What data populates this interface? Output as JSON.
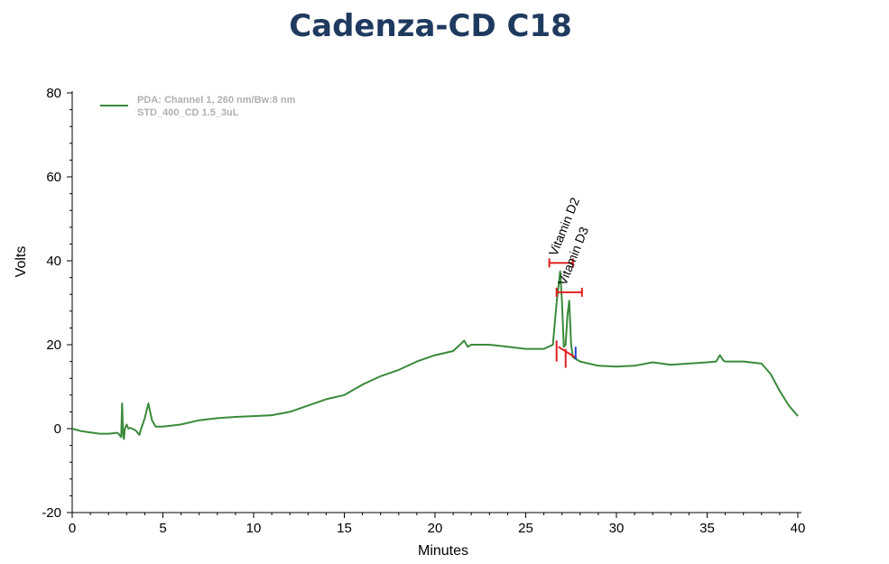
{
  "chart_data": {
    "type": "line",
    "title": "Cadenza-CD C18",
    "xlabel": "Minutes",
    "ylabel": "Volts",
    "xlim": [
      0,
      40
    ],
    "ylim": [
      -20,
      80
    ],
    "x_ticks": [
      0,
      5,
      10,
      15,
      20,
      25,
      30,
      35,
      40
    ],
    "y_ticks": [
      -20,
      0,
      20,
      40,
      60,
      80
    ],
    "legend": {
      "placement": "top-left",
      "entries": [
        "PDA: Channel 1, 260 nm/Bw:8 nm",
        "STD_400_CD 1.5_3uL"
      ]
    },
    "series": [
      {
        "name": "PDA: Channel 1, 260 nm/Bw:8 nm",
        "color": "#3a8a3a",
        "x": [
          0,
          0.5,
          1,
          1.5,
          2,
          2.5,
          2.7,
          2.75,
          2.8,
          2.85,
          2.9,
          3.0,
          3.1,
          3.2,
          3.5,
          3.7,
          3.8,
          4.0,
          4.2,
          4.4,
          4.6,
          5.0,
          6.0,
          7.0,
          8.0,
          9.0,
          10.0,
          11.0,
          12.0,
          13.0,
          14.0,
          15.0,
          16.0,
          17.0,
          18.0,
          19.0,
          20.0,
          21.0,
          21.5,
          21.6,
          21.8,
          22.0,
          23.0,
          24.0,
          25.0,
          26.0,
          26.5,
          26.7,
          26.9,
          27.0,
          27.1,
          27.2,
          27.3,
          27.4,
          27.5,
          27.6,
          27.8,
          28.0,
          29.0,
          30.0,
          31.0,
          32.0,
          33.0,
          34.0,
          35.0,
          35.5,
          35.7,
          35.9,
          36.0,
          37.0,
          38.0,
          38.5,
          39.0,
          39.5,
          40.0
        ],
        "y": [
          0.0,
          -0.6,
          -0.9,
          -1.2,
          -1.2,
          -1.0,
          -2.0,
          6.0,
          -1.0,
          -2.5,
          0.0,
          1.0,
          0.0,
          0.2,
          -0.4,
          -1.5,
          0.0,
          2.5,
          6.0,
          2.0,
          0.5,
          0.5,
          1.0,
          2.0,
          2.5,
          2.8,
          3.0,
          3.2,
          4.0,
          5.5,
          7.0,
          8.0,
          10.5,
          12.5,
          14.0,
          16.0,
          17.5,
          18.5,
          20.5,
          21.0,
          19.5,
          20.0,
          20.0,
          19.5,
          19.0,
          19.0,
          20.0,
          30.0,
          37.5,
          30.0,
          19.5,
          20.0,
          27.0,
          30.5,
          20.0,
          17.0,
          16.5,
          16.0,
          15.0,
          14.8,
          15.0,
          15.8,
          15.2,
          15.5,
          15.8,
          16.0,
          17.5,
          16.2,
          16.0,
          16.0,
          15.5,
          13.0,
          9.0,
          5.5,
          3.0
        ]
      }
    ],
    "annotations": [
      {
        "text": "Vitamin D2",
        "x": 26.9,
        "y": 37.5
      },
      {
        "text": "Vitamin D3",
        "x": 27.4,
        "y": 30.5
      }
    ]
  }
}
